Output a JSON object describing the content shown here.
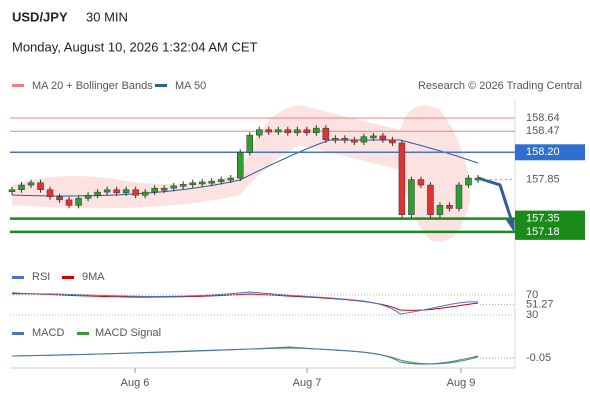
{
  "header": {
    "symbol": "USD/JPY",
    "interval": "30 MIN",
    "datetime": "Monday, August 10, 2026 1:32:04 AM CET"
  },
  "legend": [
    "MA 20 + Bollinger Bands",
    "MA 50"
  ],
  "attribution": "Research © 2026 Trading Central",
  "chart_data": {
    "type": "candlestick",
    "close": [
      157.72,
      157.78,
      157.81,
      157.72,
      157.63,
      157.59,
      157.52,
      157.61,
      157.65,
      157.69,
      157.72,
      157.68,
      157.72,
      157.65,
      157.69,
      157.74,
      157.74,
      157.77,
      157.79,
      157.81,
      157.82,
      157.83,
      157.85,
      157.87,
      158.2,
      158.42,
      158.49,
      158.46,
      158.49,
      158.45,
      158.49,
      158.45,
      158.51,
      158.36,
      158.38,
      158.36,
      158.33,
      158.4,
      158.41,
      158.36,
      158.32,
      157.4,
      157.85,
      157.78,
      157.4,
      157.52,
      157.48,
      157.78,
      157.87,
      157.87
    ],
    "ylim": [
      156.75,
      158.9
    ],
    "levels": [
      158.64,
      158.47,
      {
        "value": 158.2,
        "label": "158.20"
      },
      157.85,
      157.35,
      157.18
    ],
    "x_labels": [
      "Aug 6",
      "Aug 7",
      "Aug 9"
    ]
  },
  "indicators": {
    "rsi": {
      "name": "RSI",
      "signal": "9MA",
      "ticks": [
        70,
        30
      ],
      "value": 51.27
    },
    "macd": {
      "name": "MACD",
      "signal": "MACD Signal",
      "value": -0.05
    }
  }
}
